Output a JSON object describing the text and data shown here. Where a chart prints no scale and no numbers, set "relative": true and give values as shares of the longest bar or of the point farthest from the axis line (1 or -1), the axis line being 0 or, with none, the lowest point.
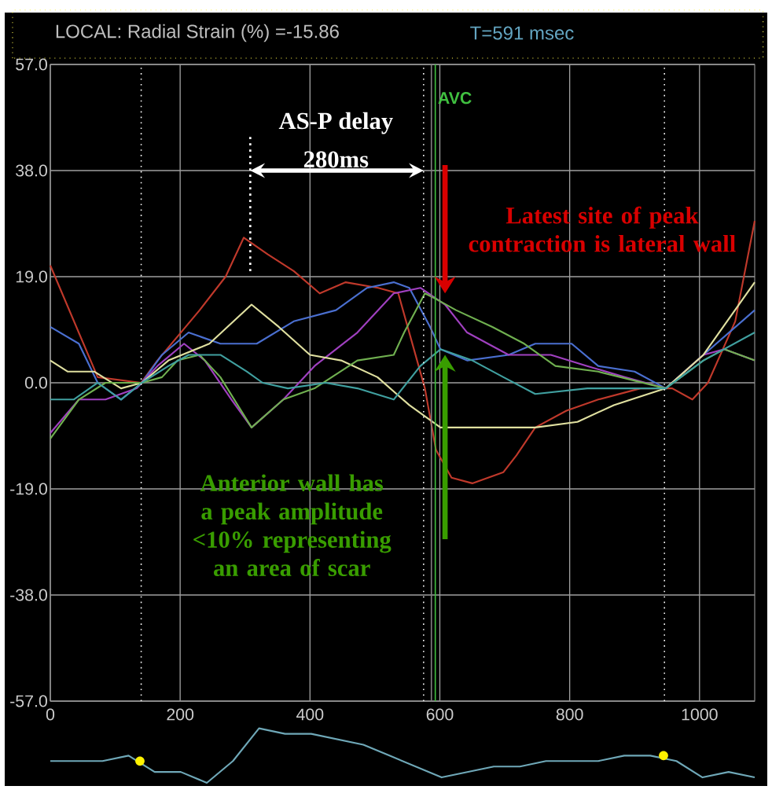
{
  "chart_data": [
    {
      "type": "line",
      "title": "LOCAL: Radial Strain (%) =-15.86",
      "subtitle": "T=591 msec",
      "xlim": [
        0,
        1085
      ],
      "xticks": [
        0,
        200,
        400,
        600,
        800,
        1000
      ],
      "ylim": [
        -57,
        57
      ],
      "yticks": [
        {
          "value": -57,
          "label": "-57.0"
        },
        {
          "value": -38,
          "label": "-38.0"
        },
        {
          "value": -19,
          "label": "-19.0"
        },
        {
          "value": 0,
          "label": "0.0"
        },
        {
          "value": 19,
          "label": "19.0"
        },
        {
          "value": 38,
          "label": "38.0"
        },
        {
          "value": 57,
          "label": "57.0"
        }
      ],
      "grid": true,
      "marker": "none",
      "series": [
        {
          "color": "#c0392b",
          "x": [
            0,
            73,
            140,
            165,
            230,
            270,
            298,
            335,
            375,
            415,
            455,
            505,
            536,
            577,
            594,
            618,
            650,
            698,
            718,
            747,
            795,
            844,
            909,
            958,
            989,
            1013,
            1055,
            1085
          ],
          "values": [
            21,
            1,
            0,
            4,
            13,
            19,
            26,
            23,
            20,
            16,
            18,
            17,
            16,
            -1,
            -12,
            -17,
            -18,
            -16,
            -13,
            -8,
            -5,
            -3,
            -1,
            -1,
            -3,
            0,
            11,
            29
          ]
        },
        {
          "color": "#4a6fd0",
          "x": [
            0,
            44,
            73,
            109,
            141,
            172,
            213,
            262,
            318,
            375,
            440,
            488,
            529,
            553,
            585,
            601,
            642,
            706,
            747,
            803,
            844,
            900,
            948,
            1006,
            1085
          ],
          "values": [
            10,
            7,
            0,
            -3,
            0,
            5,
            9,
            7,
            7,
            11,
            13,
            17,
            18,
            17,
            10,
            6,
            4,
            5,
            7,
            7,
            3,
            2,
            -1,
            5,
            13
          ]
        },
        {
          "color": "#a040c0",
          "x": [
            0,
            44,
            85,
            133,
            165,
            206,
            238,
            279,
            310,
            359,
            407,
            473,
            529,
            570,
            608,
            642,
            706,
            771,
            827,
            885,
            948,
            1006,
            1038,
            1085
          ],
          "values": [
            -9,
            -3,
            -3,
            -1,
            3,
            7,
            4,
            -3,
            -8,
            -3,
            3,
            9,
            16,
            17,
            14,
            9,
            5,
            5,
            3,
            1,
            -1,
            5,
            6,
            4
          ]
        },
        {
          "color": "#e0e0a0",
          "x": [
            0,
            27,
            68,
            109,
            141,
            182,
            245,
            310,
            352,
            400,
            448,
            504,
            553,
            601,
            667,
            747,
            812,
            868,
            948,
            1006,
            1085
          ],
          "values": [
            4,
            2,
            2,
            -1,
            0,
            4,
            7,
            14,
            10,
            5,
            4,
            1,
            -4,
            -8,
            -8,
            -8,
            -7,
            -4,
            -1,
            5,
            18
          ]
        },
        {
          "color": "#70b050",
          "x": [
            0,
            44,
            85,
            141,
            172,
            196,
            230,
            262,
            310,
            359,
            407,
            473,
            529,
            545,
            577,
            594,
            625,
            681,
            730,
            778,
            844,
            948,
            1006,
            1038,
            1085
          ],
          "values": [
            -10,
            -3,
            0,
            0,
            1,
            4,
            5,
            1,
            -8,
            -3,
            -1,
            4,
            5,
            9,
            16,
            15,
            13,
            10,
            7,
            3,
            2,
            -1,
            4,
            6,
            4
          ]
        },
        {
          "color": "#40a0a0",
          "x": [
            0,
            36,
            73,
            109,
            141,
            182,
            213,
            262,
            303,
            327,
            366,
            424,
            473,
            529,
            570,
            601,
            650,
            698,
            747,
            827,
            892,
            948,
            1006,
            1085
          ],
          "values": [
            -3,
            -3,
            0,
            -3,
            0,
            3,
            5,
            5,
            2,
            0,
            -1,
            0,
            -1,
            -3,
            3,
            6,
            4,
            1,
            -2,
            -1,
            -1,
            -1,
            4,
            9
          ]
        }
      ],
      "ref_lines": [
        {
          "axis": "x",
          "value": 140,
          "color": "#ffffff",
          "line_style": "dotted"
        },
        {
          "axis": "x",
          "value": 575,
          "color": "#ffffff",
          "line_style": "dotted"
        },
        {
          "axis": "x",
          "value": 946,
          "color": "#ffffff",
          "line_style": "dotted"
        },
        {
          "axis": "x",
          "value": 587,
          "color": "#808080",
          "line_style": "solid"
        },
        {
          "axis": "x",
          "value": 593,
          "color": "#40c040",
          "line_style": "solid",
          "label": "AVC"
        }
      ],
      "annotations": [
        "AS-P delay",
        "280ms",
        "Latest site of peak contraction is lateral wall",
        "Anterior wall has a peak amplitude <10% representing an area of scar"
      ]
    },
    {
      "type": "line",
      "relative": true,
      "marker": "none",
      "categories": [
        null,
        null,
        null,
        null,
        null,
        null,
        null,
        null,
        null,
        null,
        null,
        null,
        null,
        null,
        null,
        null,
        null,
        null,
        null,
        null,
        null,
        null,
        null,
        null,
        null,
        null,
        null,
        null
      ],
      "series": [
        {
          "color": "#6fa8b8",
          "values": [
            0.4,
            0.4,
            0.4,
            0.5,
            0.2,
            0.2,
            0,
            0.4,
            1,
            0.9,
            0.9,
            0.8,
            0.7,
            0.5,
            0.3,
            0.1,
            0.2,
            0.3,
            0.3,
            0.4,
            0.4,
            0.4,
            0.5,
            0.5,
            0.4,
            0.1,
            0.2,
            0.1
          ]
        }
      ]
    }
  ]
}
